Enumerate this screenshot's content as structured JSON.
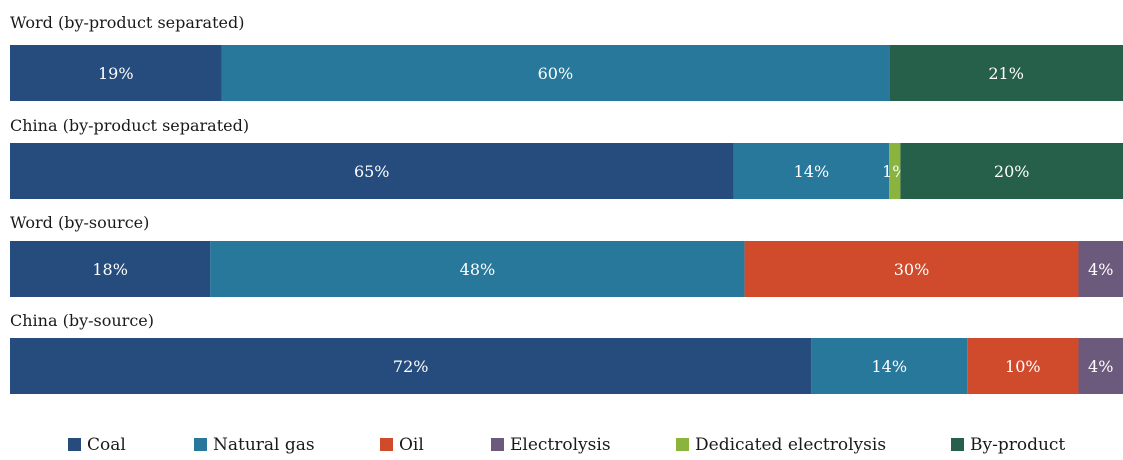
{
  "chart_data": {
    "type": "bar",
    "orientation": "horizontal",
    "stacked": true,
    "normalized": true,
    "title": "",
    "xlabel": "",
    "ylabel": "",
    "xlim": [
      0,
      100
    ],
    "grid": false,
    "legend_position": "bottom",
    "categories": [
      "Word (by-product separated)",
      "China (by-product separated)",
      "Word (by-source)",
      "China (by-source)"
    ],
    "series": [
      {
        "name": "Coal",
        "color": "#254c7c",
        "values": [
          19,
          65,
          18,
          72
        ],
        "labels": [
          "19%",
          "65%",
          "18%",
          "72%"
        ]
      },
      {
        "name": "Natural gas",
        "color": "#28789c",
        "values": [
          60,
          14,
          48,
          14
        ],
        "labels": [
          "60%",
          "14%",
          "48%",
          "14%"
        ]
      },
      {
        "name": "Oil",
        "color": "#d04a2c",
        "values": [
          0,
          0,
          30,
          10
        ],
        "labels": [
          "",
          "",
          "30%",
          "10%"
        ]
      },
      {
        "name": "Electrolysis",
        "color": "#6c5a7c",
        "values": [
          0,
          0,
          4,
          4
        ],
        "labels": [
          "",
          "",
          "4%",
          "4%"
        ]
      },
      {
        "name": "Dedicated electrolysis",
        "color": "#8bb43f",
        "values": [
          0,
          1,
          0,
          0
        ],
        "labels": [
          "",
          "1%",
          "",
          ""
        ]
      },
      {
        "name": "By-product",
        "color": "#27604a",
        "values": [
          21,
          20,
          0,
          0
        ],
        "labels": [
          "21%",
          "20%",
          "",
          ""
        ]
      }
    ]
  }
}
